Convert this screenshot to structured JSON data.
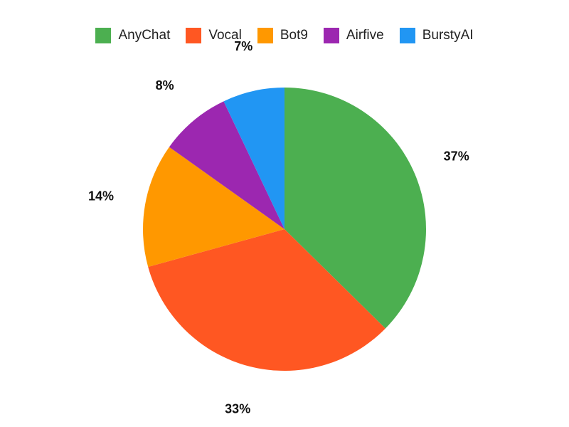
{
  "chart_data": {
    "type": "pie",
    "legend_position": "top",
    "categories": [
      "AnyChat",
      "Vocal",
      "Bot9",
      "Airfive",
      "BurstyAI"
    ],
    "values": [
      37,
      33,
      14,
      8,
      7
    ],
    "labels": [
      "37%",
      "33%",
      "14%",
      "8%",
      "7%"
    ],
    "colors": [
      "#4CAF50",
      "#FF5722",
      "#FF9800",
      "#9C27B0",
      "#2196F3"
    ]
  }
}
